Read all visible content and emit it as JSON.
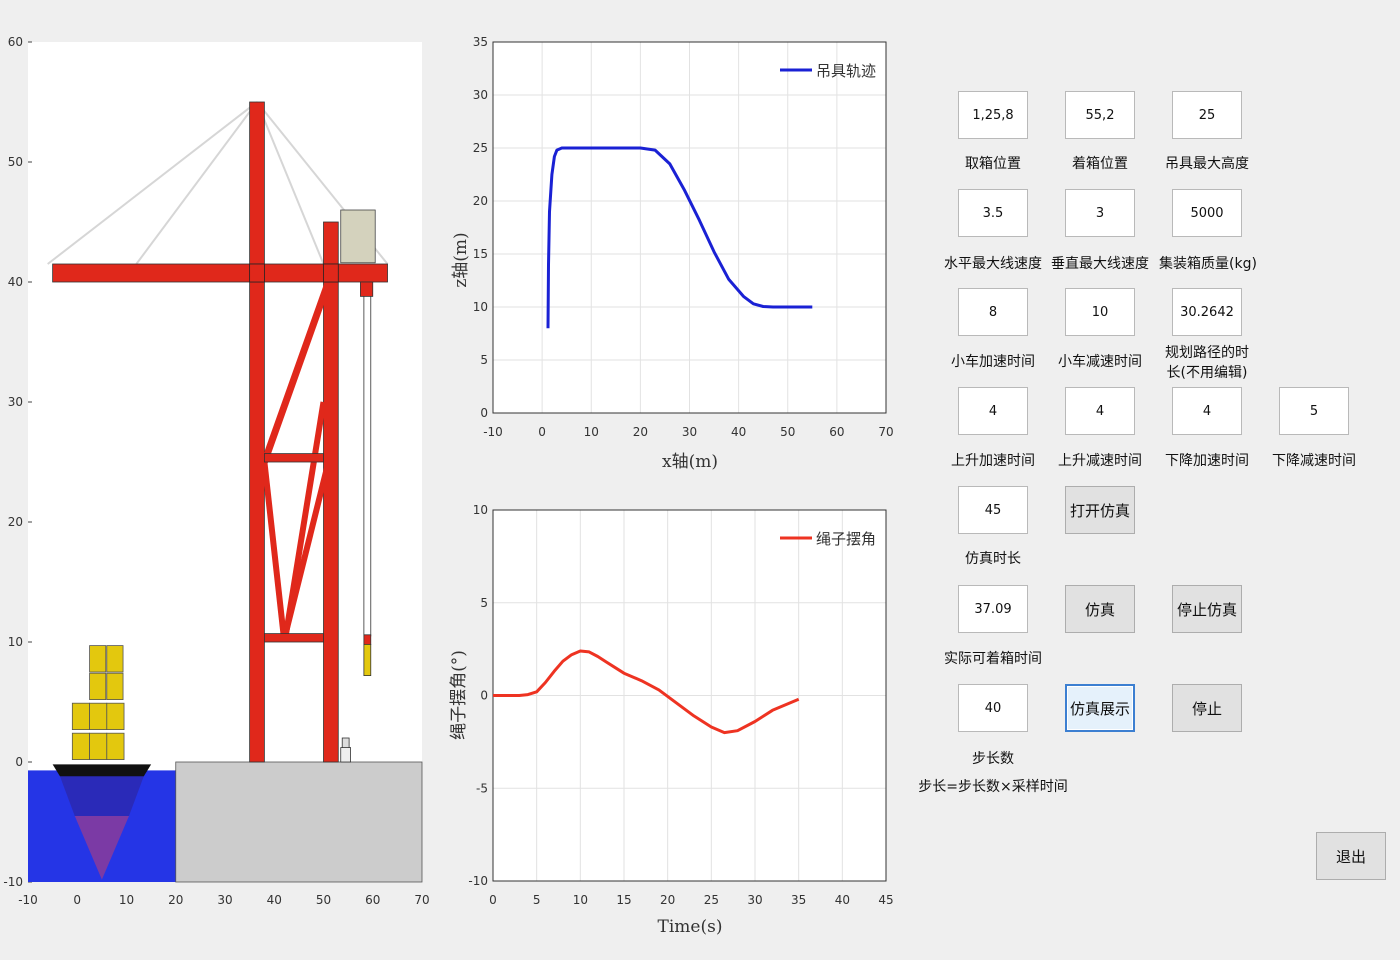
{
  "inputs": {
    "pickup_pos": {
      "value": "1,25,8",
      "label": "取箱位置"
    },
    "drop_pos": {
      "value": "55,2",
      "label": "着箱位置"
    },
    "max_height": {
      "value": "25",
      "label": "吊具最大高度"
    },
    "h_max_speed": {
      "value": "3.5",
      "label": "水平最大线速度"
    },
    "v_max_speed": {
      "value": "3",
      "label": "垂直最大线速度"
    },
    "container_mass": {
      "value": "5000",
      "label": "集装箱质量(kg)"
    },
    "trolley_acc_time": {
      "value": "8",
      "label": "小车加速时间"
    },
    "trolley_dec_time": {
      "value": "10",
      "label": "小车减速时间"
    },
    "path_duration": {
      "value": "30.2642",
      "label_line1": "规划路径的时",
      "label_line2": "长(不用编辑)"
    },
    "lift_acc_time": {
      "value": "4",
      "label": "上升加速时间"
    },
    "lift_dec_time": {
      "value": "4",
      "label": "上升减速时间"
    },
    "lower_acc_time": {
      "value": "4",
      "label": "下降加速时间"
    },
    "lower_dec_time": {
      "value": "5",
      "label": "下降减速时间"
    },
    "sim_duration": {
      "value": "45",
      "label": "仿真时长"
    },
    "actual_drop_time": {
      "value": "37.09",
      "label": "实际可着箱时间"
    },
    "step_count": {
      "value": "40",
      "label": "步长数",
      "note": "步长=步长数×采样时间"
    }
  },
  "buttons": {
    "open_sim": "打开仿真",
    "simulate": "仿真",
    "stop_sim": "停止仿真",
    "sim_display": "仿真展示",
    "stop": "停止",
    "exit": "退出"
  },
  "colors": {
    "crane": "#e0281b",
    "water": "#2535e6",
    "dock": "#cccccc",
    "cargo": "#e3c80e",
    "trajectory": "#1a21d4",
    "angle": "#ee3322",
    "cabin": "#d4d2bd"
  },
  "chart_data": [
    {
      "type": "scene",
      "xlim": [
        -10,
        70
      ],
      "ylim": [
        -10,
        60
      ],
      "xticks": [
        "-10",
        "0",
        "10",
        "20",
        "30",
        "40",
        "50",
        "60",
        "70"
      ],
      "yticks": [
        "-10",
        "0",
        "10",
        "20",
        "30",
        "40",
        "50",
        "60"
      ]
    },
    {
      "type": "line",
      "xlabel": "x轴(m)",
      "ylabel": "z轴(m)",
      "xlim": [
        -10,
        70
      ],
      "ylim": [
        0,
        35
      ],
      "xticks": [
        "-10",
        "0",
        "10",
        "20",
        "30",
        "40",
        "50",
        "60",
        "70"
      ],
      "yticks": [
        "0",
        "5",
        "10",
        "15",
        "20",
        "25",
        "30",
        "35"
      ],
      "grid": true,
      "legend_position": "top-right",
      "series": [
        {
          "name": "吊具轨迹",
          "x": [
            1.2,
            1.3,
            1.5,
            2,
            2.5,
            3,
            4,
            6,
            10,
            15,
            20,
            23,
            26,
            29,
            32,
            35,
            38,
            41,
            43,
            45,
            47,
            50,
            55
          ],
          "y": [
            8,
            14,
            19,
            22.5,
            24.2,
            24.8,
            25,
            25,
            25,
            25,
            25,
            24.8,
            23.5,
            21,
            18.2,
            15.2,
            12.6,
            11,
            10.3,
            10.05,
            10,
            10,
            10
          ]
        }
      ]
    },
    {
      "type": "line",
      "xlabel": "Time(s)",
      "ylabel": "绳子摆角(°)",
      "xlim": [
        0,
        45
      ],
      "ylim": [
        -10,
        10
      ],
      "xticks": [
        "0",
        "5",
        "10",
        "15",
        "20",
        "25",
        "30",
        "35",
        "40",
        "45"
      ],
      "yticks": [
        "-10",
        "-5",
        "0",
        "5",
        "10"
      ],
      "grid": true,
      "legend_position": "top-right",
      "series": [
        {
          "name": "绳子摆角",
          "x": [
            0,
            3,
            4,
            5,
            6,
            7,
            8,
            9,
            10,
            11,
            12,
            13,
            14,
            15,
            17,
            19,
            21,
            23,
            25,
            26.5,
            28,
            30,
            32,
            35
          ],
          "y": [
            0,
            0,
            0.05,
            0.2,
            0.7,
            1.3,
            1.85,
            2.2,
            2.4,
            2.35,
            2.1,
            1.8,
            1.5,
            1.2,
            0.8,
            0.3,
            -0.4,
            -1.1,
            -1.7,
            -2,
            -1.9,
            -1.4,
            -0.8,
            -0.2
          ]
        }
      ]
    }
  ]
}
